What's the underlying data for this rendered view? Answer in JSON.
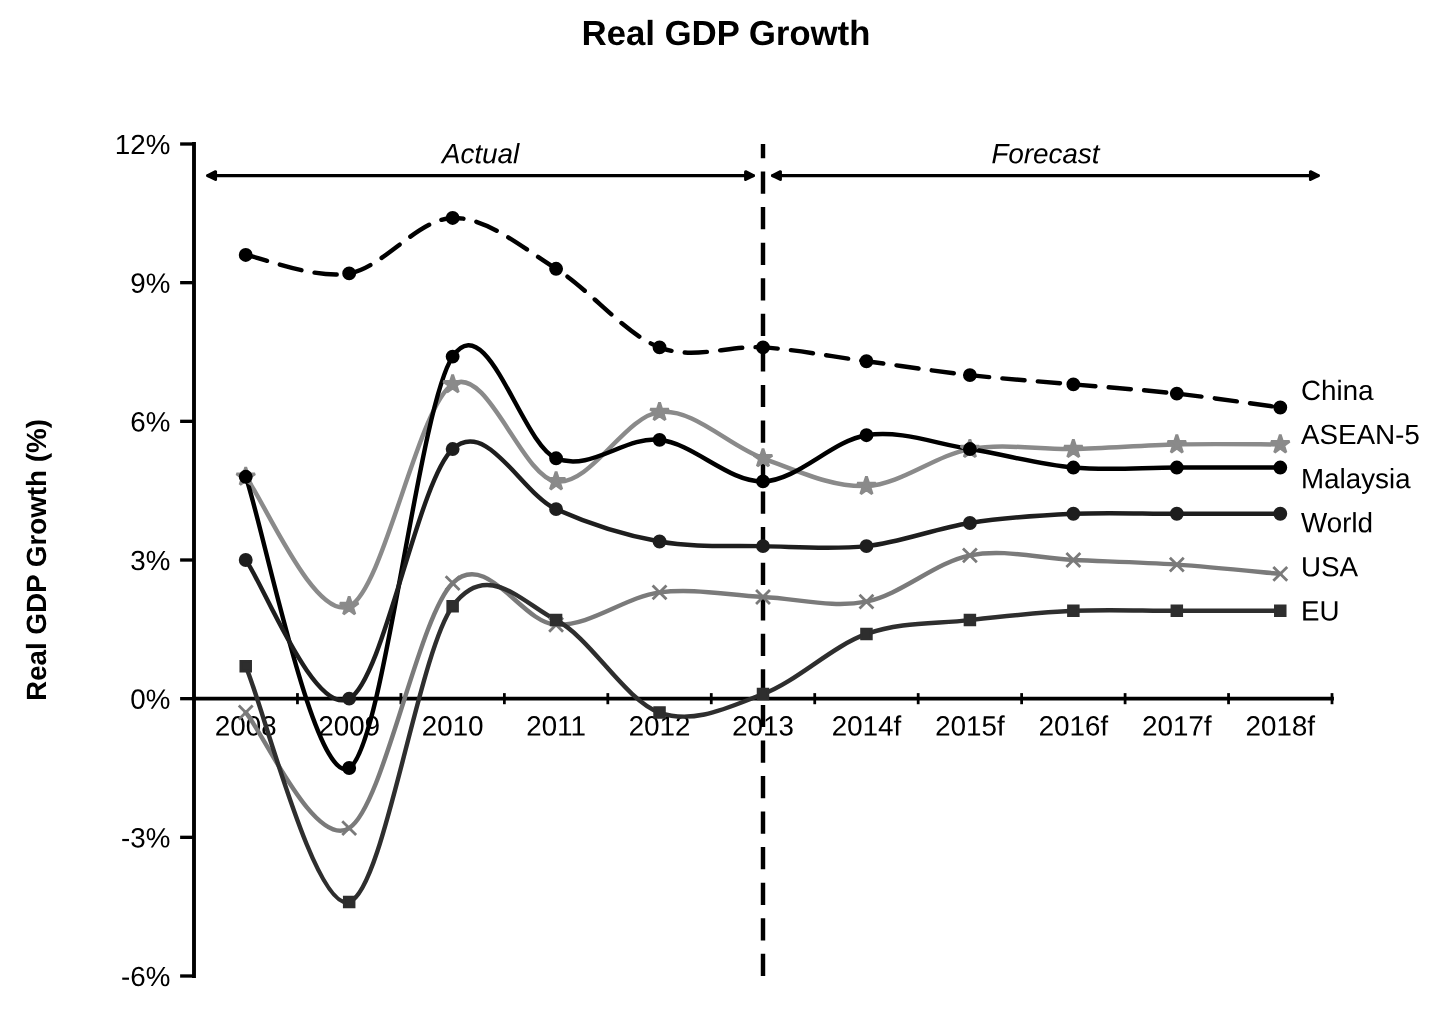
{
  "chart_data": {
    "type": "line",
    "title": "Real GDP Growth",
    "ylabel": "Real GDP Growth (%)",
    "categories": [
      "2008",
      "2009",
      "2010",
      "2011",
      "2012",
      "2013",
      "2014f",
      "2015f",
      "2016f",
      "2017f",
      "2018f"
    ],
    "series": [
      {
        "name": "China",
        "color": "#000000",
        "line_style": "dashed",
        "marker": "circle",
        "values": [
          9.6,
          9.2,
          10.4,
          9.3,
          7.6,
          7.6,
          7.3,
          7.0,
          6.8,
          6.6,
          6.3
        ]
      },
      {
        "name": "ASEAN-5",
        "color": "#8a8a8a",
        "line_style": "solid",
        "marker": "star",
        "values": [
          4.8,
          2.0,
          6.8,
          4.7,
          6.2,
          5.2,
          4.6,
          5.4,
          5.4,
          5.5,
          5.5
        ]
      },
      {
        "name": "Malaysia",
        "color": "#000000",
        "line_style": "solid",
        "marker": "circle",
        "values": [
          4.8,
          -1.5,
          7.4,
          5.2,
          5.6,
          4.7,
          5.7,
          5.4,
          5.0,
          5.0,
          5.0
        ]
      },
      {
        "name": "World",
        "color": "#1e1e1e",
        "line_style": "solid",
        "marker": "circle",
        "values": [
          3.0,
          0.0,
          5.4,
          4.1,
          3.4,
          3.3,
          3.3,
          3.8,
          4.0,
          4.0,
          4.0
        ]
      },
      {
        "name": "USA",
        "color": "#7a7a7a",
        "line_style": "solid",
        "marker": "cross",
        "values": [
          -0.3,
          -2.8,
          2.5,
          1.6,
          2.3,
          2.2,
          2.1,
          3.1,
          3.0,
          2.9,
          2.7
        ]
      },
      {
        "name": "EU",
        "color": "#2e2e2e",
        "line_style": "solid",
        "marker": "square",
        "values": [
          0.7,
          -4.4,
          2.0,
          1.7,
          -0.3,
          0.1,
          1.4,
          1.7,
          1.9,
          1.9,
          1.9
        ]
      }
    ],
    "ylim": [
      -6,
      12
    ],
    "yticks": [
      {
        "value": -6,
        "label": "-6%"
      },
      {
        "value": -3,
        "label": "-3%"
      },
      {
        "value": 0,
        "label": "0%"
      },
      {
        "value": 3,
        "label": "3%"
      },
      {
        "value": 6,
        "label": "6%"
      },
      {
        "value": 9,
        "label": "9%"
      },
      {
        "value": 12,
        "label": "12%"
      }
    ],
    "ref_lines": [
      {
        "axis": "x",
        "value": "2013",
        "color": "#000000",
        "line_style": "dashed"
      }
    ],
    "annotations": [
      "Actual",
      "Forecast"
    ]
  }
}
